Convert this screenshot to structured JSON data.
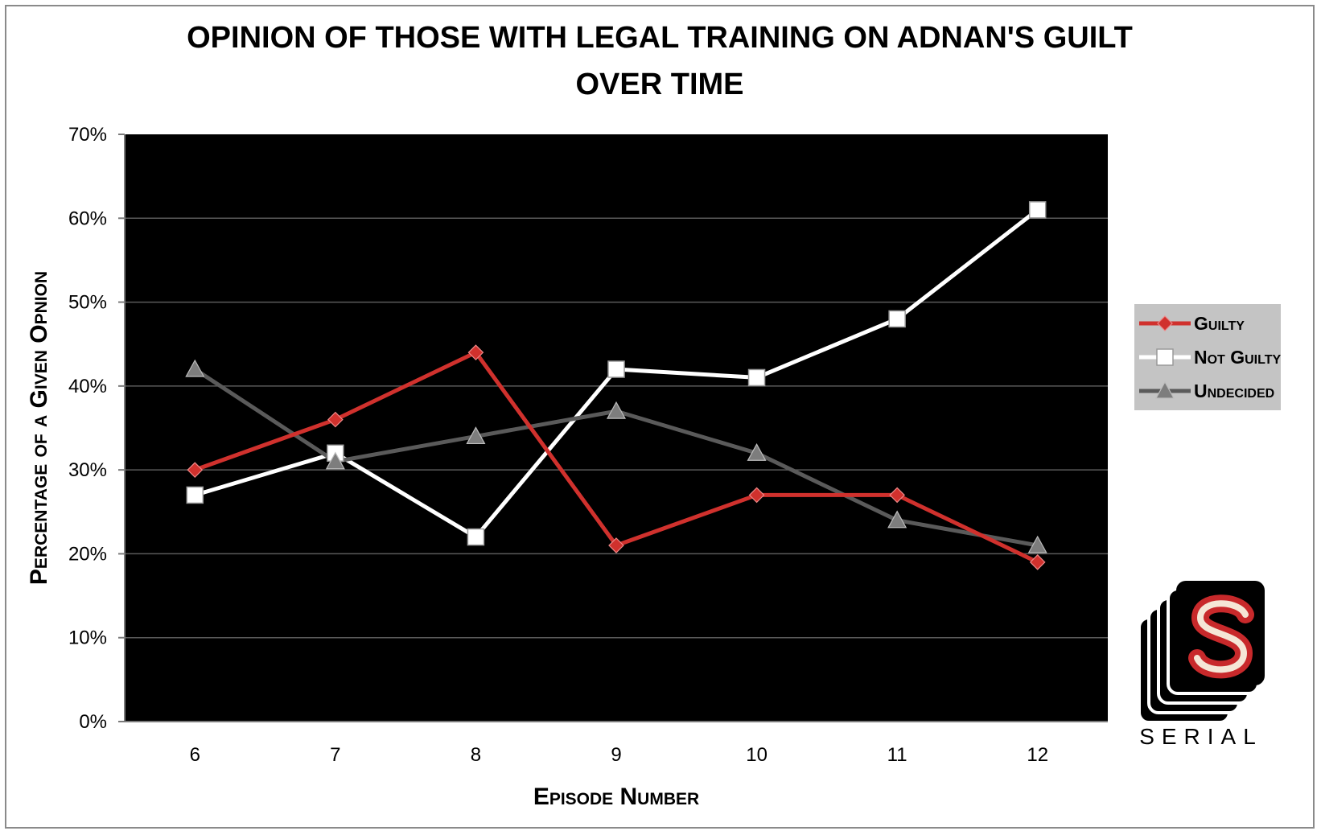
{
  "chart_data": {
    "type": "line",
    "title": "OPINION OF THOSE WITH LEGAL TRAINING ON ADNAN'S GUILT\nOVER TIME",
    "xlabel": "Episode Number",
    "ylabel": "Percentage of a Given Opnion",
    "categories": [
      "6",
      "7",
      "8",
      "9",
      "10",
      "11",
      "12"
    ],
    "ylim": [
      0,
      70
    ],
    "yticks": [
      "0%",
      "10%",
      "20%",
      "30%",
      "40%",
      "50%",
      "60%",
      "70%"
    ],
    "grid": true,
    "legend_position": "right",
    "plot_background": "#000000",
    "series": [
      {
        "name": "Guilty",
        "color": "#d0312d",
        "marker": "diamond",
        "values": [
          30,
          36,
          44,
          21,
          27,
          27,
          19
        ]
      },
      {
        "name": "Not Guilty",
        "color": "#ffffff",
        "marker": "square",
        "values": [
          27,
          32,
          22,
          42,
          41,
          48,
          61
        ]
      },
      {
        "name": "Undecided",
        "color": "#5a5a5a",
        "marker": "triangle",
        "values": [
          42,
          31,
          34,
          37,
          32,
          24,
          21
        ]
      }
    ]
  },
  "logo": {
    "letter": "S",
    "wordmark": "SERIAL"
  }
}
